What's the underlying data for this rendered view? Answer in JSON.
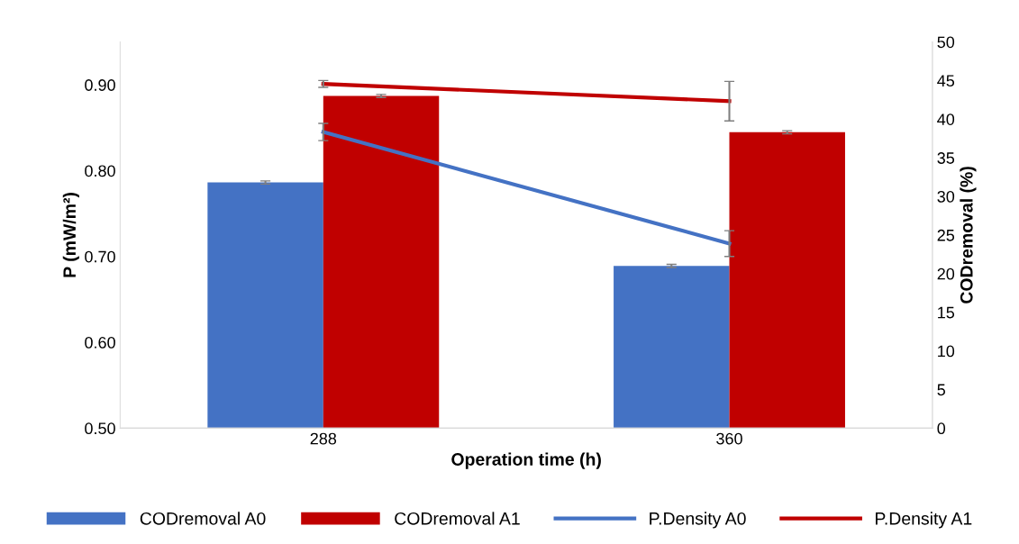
{
  "chart_data": {
    "type": "bar",
    "xlabel": "Operation time (h)",
    "ylabel": "P (mW/m²)",
    "y2label": "CODremoval (%)",
    "categories": [
      "288",
      "360"
    ],
    "series": [
      {
        "name": "CODremoval A0",
        "axis": "y2",
        "color": "#4472c4",
        "values": [
          31.8,
          21.0
        ],
        "errors": [
          0.2,
          0.2
        ]
      },
      {
        "name": "CODremoval A1",
        "axis": "y2",
        "color": "#c00000",
        "values": [
          43.0,
          38.3
        ],
        "errors": [
          0.2,
          0.2
        ]
      },
      {
        "name": "P.Density A0",
        "type": "line",
        "axis": "y",
        "color": "#4472c4",
        "values": [
          0.845,
          0.715
        ],
        "errors": [
          0.01,
          0.015
        ]
      },
      {
        "name": "P.Density A1",
        "type": "line",
        "axis": "y",
        "color": "#c00000",
        "values": [
          0.901,
          0.881
        ],
        "errors": [
          0.004,
          0.023
        ]
      }
    ],
    "ylim": [
      0.5,
      0.95
    ],
    "yticks": [
      {
        "value": 0.5,
        "label": "0.50"
      },
      {
        "value": 0.6,
        "label": "0.60"
      },
      {
        "value": 0.7,
        "label": "0.70"
      },
      {
        "value": 0.8,
        "label": "0.80"
      },
      {
        "value": 0.9,
        "label": "0.90"
      }
    ],
    "y2lim": [
      0,
      50
    ],
    "y2ticks": [
      0,
      5,
      10,
      15,
      20,
      25,
      30,
      35,
      40,
      45,
      50
    ],
    "grid": false,
    "legend": "bottom",
    "marker": "none",
    "line_style": "solid"
  }
}
